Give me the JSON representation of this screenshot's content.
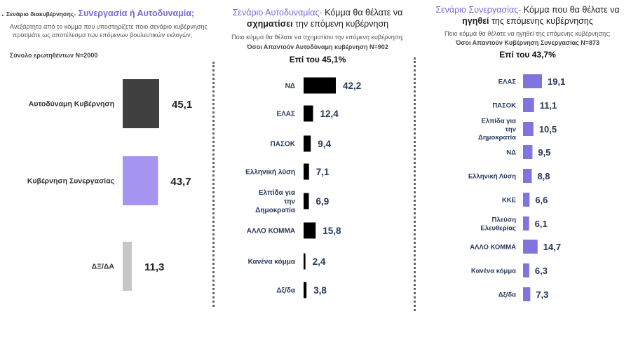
{
  "colors": {
    "panel1": [
      "#404040",
      "#a594f0",
      "#c6c6c6"
    ],
    "panel2": "#000000",
    "panel3": "#8174de",
    "accent": "#7b68d4"
  },
  "panel1": {
    "number_prefix": ".",
    "title_prefix": "Σενάριο διακυβέρνησης-",
    "title_main": "Συνεργασία ή Αυτοδυναμία;",
    "question_line1": "Ανεξάρτητα από το κόμμα που υποστηρίζετε ποιο σενάριο κυβέρνησης",
    "question_line2": "προτιμάτε ως αποτέλεσμα των επόμενων βουλευτικών εκλογών;",
    "base": "Σύνολο ερωτηθέντων Ν=2000"
  },
  "panel2": {
    "title_part1": "Σενάριο Αυτοδυναμίας-",
    "title_part2": " Κόμμα θα θέλατε να ",
    "title_emph": "σχηματίσει",
    "title_part3": " την επόμενη κυβέρνηση",
    "question": "Ποιο κόμμα θα θέλατε να σχηματίσει  την επόμενη κυβέρνηση;",
    "base_note": "Όσοι Απαντούν Αυτοδύναμη κυβέρνηση Ν=902",
    "base": "Επί του 45,1%"
  },
  "panel3": {
    "title_part1": "Σενάριο Συνεργασίας-",
    "title_part2": " Κόμμα που θα θέλατε να ",
    "title_emph": "ηγηθεί",
    "title_part3": " της επόμενης κυβέρνησης",
    "question": "Ποιο κόμμα θα θέλατε να ηγηθεί της επόμενης κυβέρνησης;",
    "base_note": "Όσοι Απαντούν Κυβέρνηση Συνεργασίας  Ν=873",
    "base": "Επί του 43,7%"
  },
  "chart_data": [
    {
      "type": "bar",
      "categories": [
        "Αυτοδύναμη Κυβέρνηση",
        "Κυβέρνηση Συνεργασίας",
        "ΔΞ/ΔΑ"
      ],
      "values": [
        45.1,
        43.7,
        11.3
      ],
      "value_labels": [
        "45,1",
        "43,7",
        "11,3"
      ],
      "orientation": "vertical-bars-side-labels"
    },
    {
      "type": "bar",
      "categories": [
        "ΝΔ",
        "ΕΛΑΣ",
        "ΠΑΣΟΚ",
        "Ελληνική λύση",
        "Ελπίδα για την Δημοκρατία",
        "ΑΛΛΟ ΚΟΜΜΑ",
        "Κανένα κόμμα",
        "Δξ/δα"
      ],
      "values": [
        42.2,
        12.4,
        9.4,
        7.1,
        6.9,
        15.8,
        2.4,
        3.8
      ],
      "value_labels": [
        "42,2",
        "12,4",
        "9,4",
        "7,1",
        "6,9",
        "15,8",
        "2,4",
        "3,8"
      ],
      "orientation": "horizontal"
    },
    {
      "type": "bar",
      "categories": [
        "ΕΛΑΣ",
        "ΠΑΣΟΚ",
        "Ελπίδα για την Δημοκρατία",
        "ΝΔ",
        "Ελληνική Λύση",
        "ΚΚΕ",
        "Πλεύση Ελευθερίας",
        "ΑΛΛΟ ΚΟΜΜΑ",
        "Κανένα κόμμα",
        "Δξ/δα"
      ],
      "values": [
        19.1,
        11.1,
        10.5,
        9.5,
        8.8,
        6.6,
        6.1,
        14.7,
        6.3,
        7.3
      ],
      "value_labels": [
        "19,1",
        "11,1",
        "10,5",
        "9,5",
        "8,8",
        "6,6",
        "6,1",
        "14,7",
        "6,3",
        "7,3"
      ],
      "orientation": "horizontal"
    }
  ]
}
